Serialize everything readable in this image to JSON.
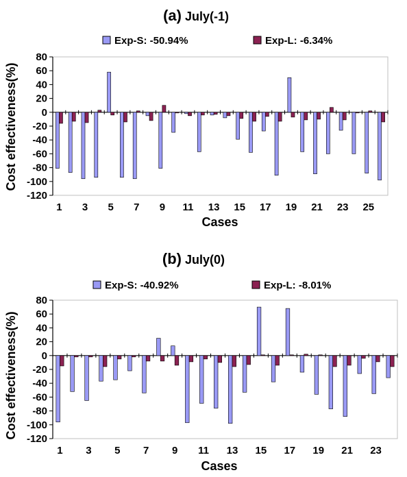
{
  "colors": {
    "exp_s": "#9a9af5",
    "exp_l": "#8b2252",
    "axis": "#000000",
    "grid": "#bfbfbf"
  },
  "chart_data": [
    {
      "type": "bar",
      "panel_letter": "(a)",
      "title": "July(-1)",
      "xlabel": "Cases",
      "ylabel": "Cost effectiveness(%)",
      "ylim": [
        -120,
        80
      ],
      "yticks": [
        -120,
        -100,
        -80,
        -60,
        -40,
        -20,
        0,
        20,
        40,
        60,
        80
      ],
      "xtick_labels": [
        "1",
        "3",
        "5",
        "7",
        "9",
        "11",
        "13",
        "15",
        "17",
        "19",
        "21",
        "23",
        "25"
      ],
      "categories": [
        "1",
        "2",
        "3",
        "4",
        "5",
        "6",
        "7",
        "8",
        "9",
        "10",
        "11",
        "12",
        "13",
        "14",
        "15",
        "16",
        "17",
        "18",
        "19",
        "20",
        "21",
        "22",
        "23",
        "24",
        "25",
        "26"
      ],
      "series": [
        {
          "name": "Exp-S: -50.94%",
          "values": [
            -81,
            -87,
            -96,
            -94,
            58,
            -94,
            -96,
            -5,
            -81,
            -29,
            -2,
            -57,
            -4,
            -8,
            -39,
            -58,
            -27,
            -91,
            50,
            -57,
            -89,
            -60,
            -26,
            -60,
            -88,
            -98
          ]
        },
        {
          "name": "Exp-L: -6.34%",
          "values": [
            -16,
            -13,
            -15,
            3,
            -4,
            -14,
            2,
            -12,
            10,
            -1,
            -5,
            -4,
            -3,
            -5,
            -9,
            -13,
            -6,
            -13,
            -7,
            -11,
            -10,
            7,
            -11,
            -1,
            2,
            -14
          ]
        }
      ]
    },
    {
      "type": "bar",
      "panel_letter": "(b)",
      "title": "July(0)",
      "xlabel": "Cases",
      "ylabel": "Cost effectiveness(%)",
      "ylim": [
        -120,
        80
      ],
      "yticks": [
        -120,
        -100,
        -80,
        -60,
        -40,
        -20,
        0,
        20,
        40,
        60,
        80
      ],
      "xtick_labels": [
        "1",
        "3",
        "5",
        "7",
        "9",
        "11",
        "13",
        "15",
        "17",
        "19",
        "21",
        "23"
      ],
      "categories": [
        "1",
        "2",
        "3",
        "4",
        "5",
        "6",
        "7",
        "8",
        "9",
        "10",
        "11",
        "12",
        "13",
        "14",
        "15",
        "16",
        "17",
        "18",
        "19",
        "20",
        "21",
        "22",
        "23",
        "24"
      ],
      "series": [
        {
          "name": "Exp-S: -40.92%",
          "values": [
            -96,
            -52,
            -65,
            -37,
            -35,
            -22,
            -54,
            25,
            14,
            -97,
            -69,
            -76,
            -98,
            -53,
            70,
            -38,
            68,
            -24,
            -56,
            -77,
            -88,
            -26,
            -55,
            -32
          ]
        },
        {
          "name": "Exp-L: -8.01%",
          "values": [
            -15,
            -2,
            -2,
            -16,
            -5,
            -2,
            -8,
            -8,
            -14,
            -9,
            -5,
            -10,
            -16,
            -13,
            1,
            -14,
            1,
            2,
            1,
            -16,
            -14,
            -4,
            -9,
            -16
          ]
        }
      ]
    }
  ]
}
